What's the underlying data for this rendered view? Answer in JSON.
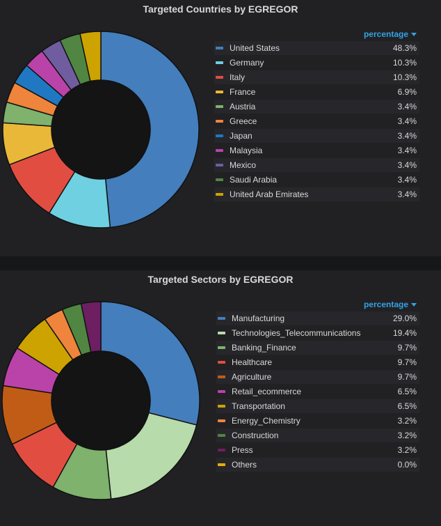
{
  "legend_sort_label": "percentage",
  "chart_data": [
    {
      "type": "pie",
      "title": "Targeted Countries by EGREGOR",
      "legend_placement": "right",
      "slices": [
        {
          "label": "United States",
          "value": 48.3,
          "display": "48.3%",
          "color": "#447ebc"
        },
        {
          "label": "Germany",
          "value": 10.3,
          "display": "10.3%",
          "color": "#6ed0e0"
        },
        {
          "label": "Italy",
          "value": 10.3,
          "display": "10.3%",
          "color": "#e24d42"
        },
        {
          "label": "France",
          "value": 6.9,
          "display": "6.9%",
          "color": "#eab839"
        },
        {
          "label": "Austria",
          "value": 3.4,
          "display": "3.4%",
          "color": "#7eb26d"
        },
        {
          "label": "Greece",
          "value": 3.4,
          "display": "3.4%",
          "color": "#ef843c"
        },
        {
          "label": "Japan",
          "value": 3.4,
          "display": "3.4%",
          "color": "#1f78c1"
        },
        {
          "label": "Malaysia",
          "value": 3.4,
          "display": "3.4%",
          "color": "#ba43a9"
        },
        {
          "label": "Mexico",
          "value": 3.4,
          "display": "3.4%",
          "color": "#705da0"
        },
        {
          "label": "Saudi Arabia",
          "value": 3.4,
          "display": "3.4%",
          "color": "#508642"
        },
        {
          "label": "United Arab Emirates",
          "value": 3.4,
          "display": "3.4%",
          "color": "#cca300"
        }
      ]
    },
    {
      "type": "pie",
      "title": "Targeted Sectors by EGREGOR",
      "legend_placement": "right",
      "slices": [
        {
          "label": "Manufacturing",
          "value": 29.0,
          "display": "29.0%",
          "color": "#447ebc"
        },
        {
          "label": "Technologies_Telecommunications",
          "value": 19.4,
          "display": "19.4%",
          "color": "#b7dbab"
        },
        {
          "label": "Banking_Finance",
          "value": 9.7,
          "display": "9.7%",
          "color": "#7eb26d"
        },
        {
          "label": "Healthcare",
          "value": 9.7,
          "display": "9.7%",
          "color": "#e24d42"
        },
        {
          "label": "Agriculture",
          "value": 9.7,
          "display": "9.7%",
          "color": "#c15c17"
        },
        {
          "label": "Retail_ecommerce",
          "value": 6.5,
          "display": "6.5%",
          "color": "#ba43a9"
        },
        {
          "label": "Transportation",
          "value": 6.5,
          "display": "6.5%",
          "color": "#cca300"
        },
        {
          "label": "Energy_Chemistry",
          "value": 3.2,
          "display": "3.2%",
          "color": "#ef843c"
        },
        {
          "label": "Construction",
          "value": 3.2,
          "display": "3.2%",
          "color": "#508642"
        },
        {
          "label": "Press",
          "value": 3.2,
          "display": "3.2%",
          "color": "#6d1f62"
        },
        {
          "label": "Others",
          "value": 0.0,
          "display": "0.0%",
          "color": "#e5ac0e"
        }
      ]
    }
  ]
}
